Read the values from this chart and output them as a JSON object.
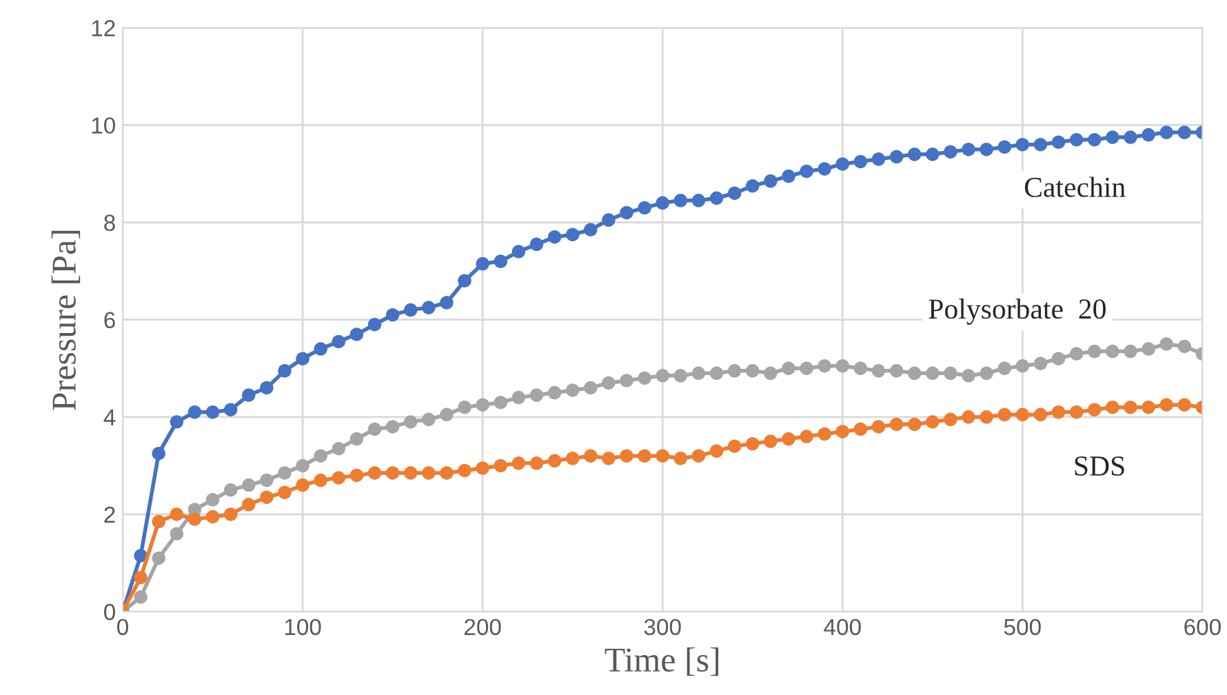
{
  "chart_data": {
    "type": "line",
    "xlabel": "Time [s]",
    "ylabel": "Pressure [Pa]",
    "x": [
      0,
      10,
      20,
      30,
      40,
      50,
      60,
      70,
      80,
      90,
      100,
      110,
      120,
      130,
      140,
      150,
      160,
      170,
      180,
      190,
      200,
      210,
      220,
      230,
      240,
      250,
      260,
      270,
      280,
      290,
      300,
      310,
      320,
      330,
      340,
      350,
      360,
      370,
      380,
      390,
      400,
      410,
      420,
      430,
      440,
      450,
      460,
      470,
      480,
      490,
      500,
      510,
      520,
      530,
      540,
      550,
      560,
      570,
      580,
      590,
      600
    ],
    "series": [
      {
        "name": "Catechin",
        "color": "#4472c4",
        "values": [
          0,
          1.15,
          3.25,
          3.9,
          4.1,
          4.1,
          4.15,
          4.45,
          4.6,
          4.95,
          5.2,
          5.4,
          5.55,
          5.7,
          5.9,
          6.1,
          6.2,
          6.25,
          6.35,
          6.8,
          7.15,
          7.2,
          7.4,
          7.55,
          7.7,
          7.75,
          7.85,
          8.05,
          8.2,
          8.3,
          8.4,
          8.45,
          8.45,
          8.5,
          8.6,
          8.75,
          8.85,
          8.95,
          9.05,
          9.1,
          9.2,
          9.25,
          9.3,
          9.35,
          9.4,
          9.4,
          9.45,
          9.5,
          9.5,
          9.55,
          9.6,
          9.6,
          9.65,
          9.7,
          9.7,
          9.75,
          9.75,
          9.8,
          9.85,
          9.85,
          9.85
        ]
      },
      {
        "name": "Polysorbate  20",
        "color": "#a5a5a5",
        "values": [
          0,
          0.3,
          1.1,
          1.6,
          2.1,
          2.3,
          2.5,
          2.6,
          2.7,
          2.85,
          3.0,
          3.2,
          3.35,
          3.55,
          3.75,
          3.8,
          3.9,
          3.95,
          4.05,
          4.2,
          4.25,
          4.3,
          4.4,
          4.45,
          4.5,
          4.55,
          4.6,
          4.7,
          4.75,
          4.8,
          4.85,
          4.85,
          4.9,
          4.9,
          4.95,
          4.95,
          4.9,
          5.0,
          5.0,
          5.05,
          5.05,
          5.0,
          4.95,
          4.95,
          4.9,
          4.9,
          4.9,
          4.85,
          4.9,
          5.0,
          5.05,
          5.1,
          5.2,
          5.3,
          5.35,
          5.35,
          5.35,
          5.4,
          5.5,
          5.45,
          5.3
        ]
      },
      {
        "name": "SDS",
        "color": "#ed7d31",
        "values": [
          0,
          0.7,
          1.85,
          2.0,
          1.9,
          1.95,
          2.0,
          2.2,
          2.35,
          2.45,
          2.6,
          2.7,
          2.75,
          2.8,
          2.85,
          2.85,
          2.85,
          2.85,
          2.85,
          2.9,
          2.95,
          3.0,
          3.05,
          3.05,
          3.1,
          3.15,
          3.2,
          3.15,
          3.2,
          3.2,
          3.2,
          3.15,
          3.2,
          3.3,
          3.4,
          3.45,
          3.5,
          3.55,
          3.6,
          3.65,
          3.7,
          3.75,
          3.8,
          3.85,
          3.85,
          3.9,
          3.95,
          4.0,
          4.0,
          4.05,
          4.05,
          4.05,
          4.1,
          4.1,
          4.15,
          4.2,
          4.2,
          4.2,
          4.25,
          4.25,
          4.2
        ]
      }
    ],
    "xlim": [
      0,
      600
    ],
    "xticks": [
      0,
      100,
      200,
      300,
      400,
      500,
      600
    ],
    "ylim": [
      0,
      12
    ],
    "yticks": [
      0,
      2,
      4,
      6,
      8,
      10,
      12
    ],
    "grid": true,
    "legend": false,
    "marker": "circle",
    "line_style": "solid"
  }
}
